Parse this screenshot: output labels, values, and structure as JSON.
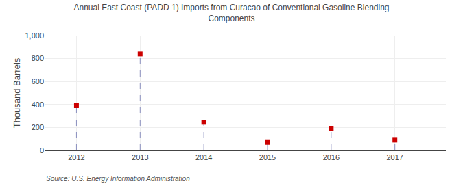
{
  "chart_data": {
    "type": "scatter",
    "title": "Annual East Coast (PADD 1) Imports from Curacao of Conventional Gasoline Blending\nComponents",
    "ylabel": "Thousand Barrels",
    "annotations": [
      "Source: U.S. Energy Information Administration"
    ],
    "x": [
      2012,
      2013,
      2014,
      2015,
      2016,
      2017
    ],
    "values": [
      390,
      840,
      245,
      70,
      193,
      90
    ],
    "color": "#cc0000",
    "marker": "square",
    "line_style": "dashed",
    "xlim": [
      2011.5,
      2017.8
    ],
    "xticks": [
      2012,
      2013,
      2014,
      2015,
      2016,
      2017
    ],
    "ylim": [
      0,
      1000
    ],
    "yticks": [
      0,
      200,
      400,
      600,
      800,
      {
        "value": 1000,
        "label": "1,000"
      }
    ],
    "grid": true
  }
}
